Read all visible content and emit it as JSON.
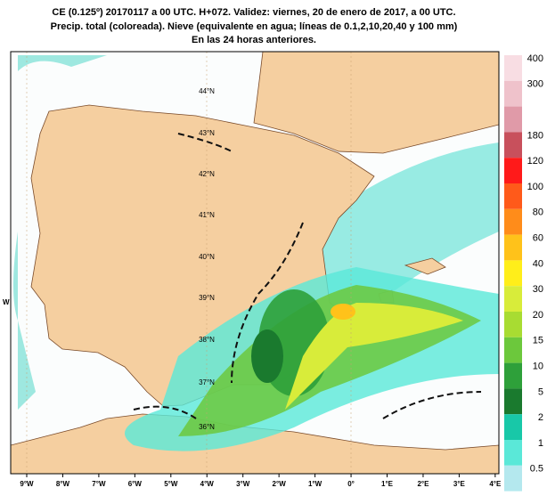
{
  "header": {
    "lines": [
      "CE (0.125º) 20170117 a 00 UTC.  H+072. Validez: viernes, 20 de enero de 2017,  a  00 UTC.",
      "Precip. total (coloreada). Nieve (equivalente en agua; líneas de 0.1,2,10,20,40 y 100 mm)",
      "En las 24 horas anteriores."
    ]
  },
  "longitude_labels": [
    "9°W",
    "8°W",
    "7°W",
    "6°W",
    "5°W",
    "4°W",
    "3°W",
    "2°W",
    "1°W",
    "0°",
    "1°E",
    "2°E",
    "3°E",
    "4°E"
  ],
  "latitude_labels": [
    "44°N",
    "43°N",
    "42°N",
    "41°N",
    "40°N",
    "39°N",
    "38°N",
    "37°N",
    "36°N"
  ],
  "edge_label": "W",
  "colorbar": {
    "colors": [
      "#f8dde3",
      "#efc2cb",
      "#e09aa8",
      "#c8505c",
      "#ff1a1a",
      "#ff5a1a",
      "#ff8c1a",
      "#ffc21a",
      "#ffee1a",
      "#d8ec3a",
      "#a8dc32",
      "#6cc83c",
      "#2ea03a",
      "#1a7a2e",
      "#18c8a8",
      "#5ae8d8",
      "#b4e8ee"
    ],
    "labels": [
      "400",
      "300",
      null,
      "180",
      "120",
      "100",
      "80",
      "60",
      "40",
      "30",
      "20",
      "15",
      "10",
      "5",
      "2",
      "1",
      "0.5"
    ]
  }
}
